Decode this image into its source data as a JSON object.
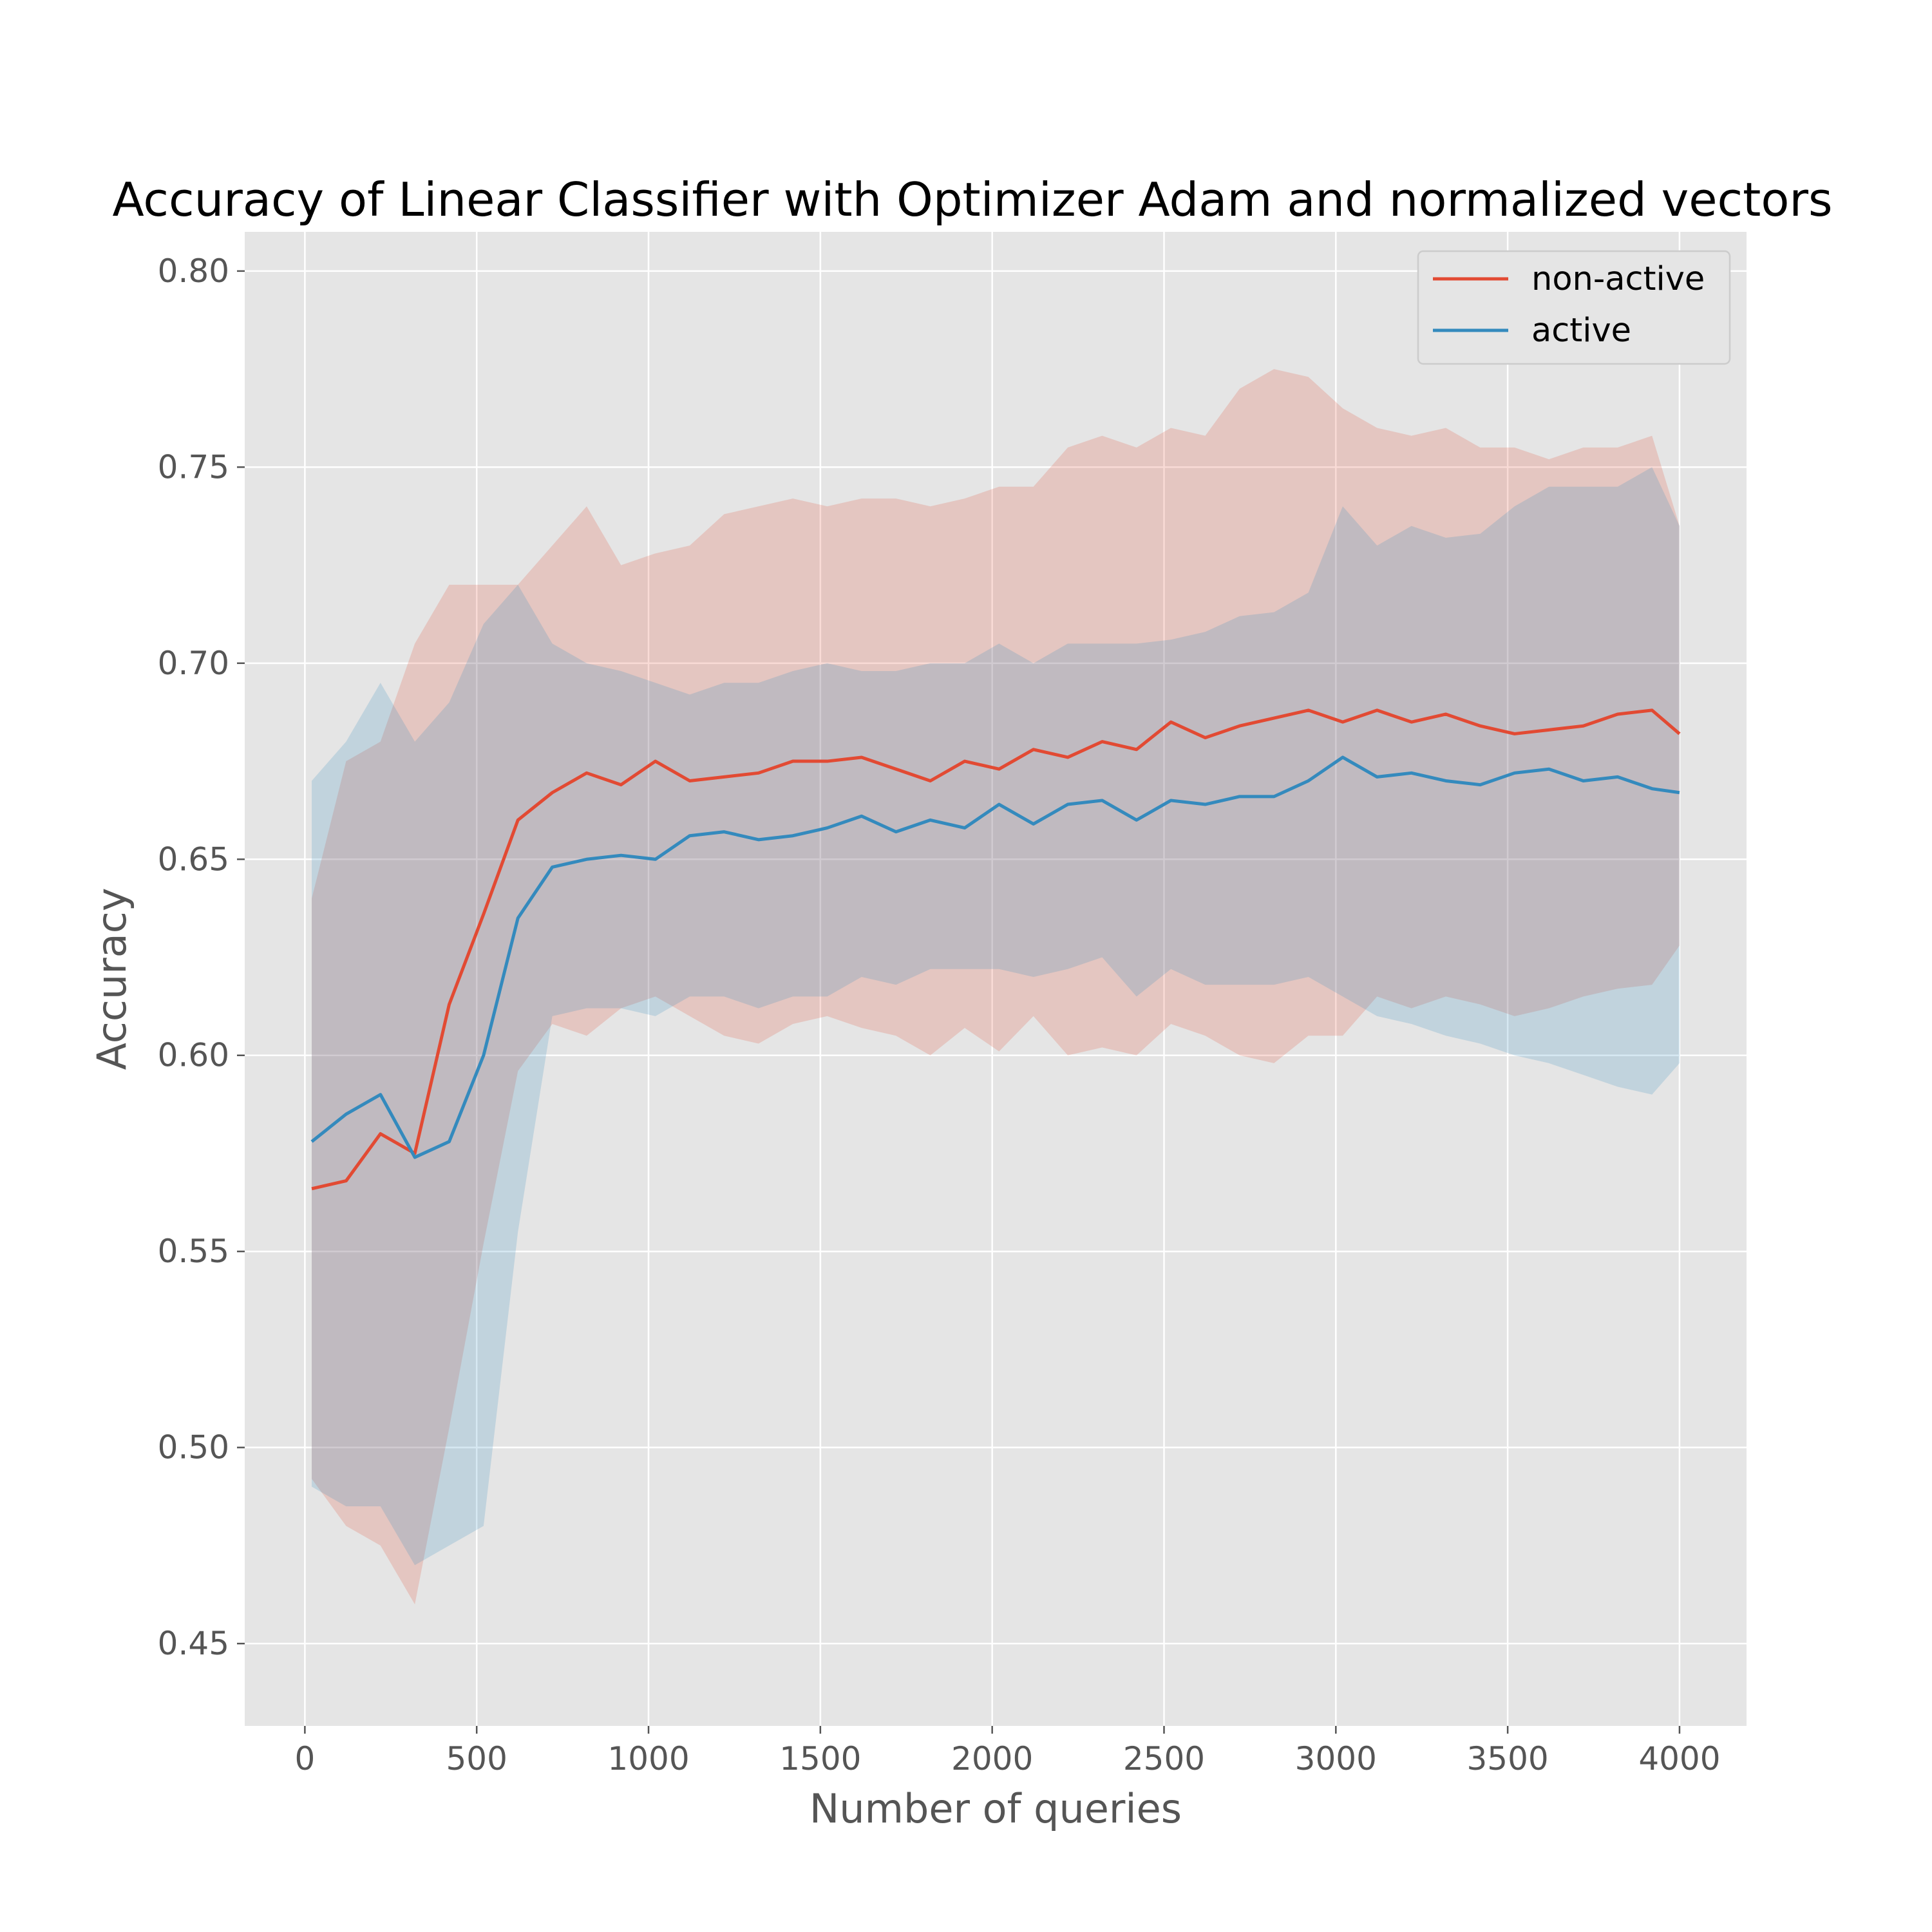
{
  "chart_data": {
    "type": "line",
    "title": "Accuracy of Linear Classifier with Optimizer Adam and normalized vectors",
    "xlabel": "Number of queries",
    "ylabel": "Accuracy",
    "xlim": [
      -175,
      4195
    ],
    "ylim": [
      0.429,
      0.81
    ],
    "xticks": [
      0,
      500,
      1000,
      1500,
      2000,
      2500,
      3000,
      3500,
      4000
    ],
    "yticks": [
      0.45,
      0.5,
      0.55,
      0.6,
      0.65,
      0.7,
      0.75,
      0.8
    ],
    "xtick_labels": [
      "0",
      "500",
      "1000",
      "1500",
      "2000",
      "2500",
      "3000",
      "3500",
      "4000"
    ],
    "ytick_labels": [
      "0.45",
      "0.50",
      "0.55",
      "0.60",
      "0.65",
      "0.70",
      "0.75",
      "0.80"
    ],
    "grid": true,
    "legend_position": "top-right",
    "x": [
      20,
      120,
      220,
      320,
      420,
      520,
      620,
      720,
      820,
      920,
      1020,
      1120,
      1220,
      1320,
      1420,
      1520,
      1620,
      1720,
      1820,
      1920,
      2020,
      2120,
      2220,
      2320,
      2420,
      2520,
      2620,
      2720,
      2820,
      2920,
      3020,
      3120,
      3220,
      3320,
      3420,
      3520,
      3620,
      3720,
      3820,
      3920,
      4000
    ],
    "series": [
      {
        "name": "non-active",
        "color": "#E24A33",
        "band_color": "#E24A33",
        "values": [
          0.566,
          0.568,
          0.58,
          0.575,
          0.613,
          0.636,
          0.66,
          0.667,
          0.672,
          0.669,
          0.675,
          0.67,
          0.671,
          0.672,
          0.675,
          0.675,
          0.676,
          0.673,
          0.67,
          0.675,
          0.673,
          0.678,
          0.676,
          0.68,
          0.678,
          0.685,
          0.681,
          0.684,
          0.686,
          0.688,
          0.685,
          0.688,
          0.685,
          0.687,
          0.684,
          0.682,
          0.683,
          0.684,
          0.687,
          0.688,
          0.682
        ],
        "upper": [
          0.64,
          0.675,
          0.68,
          0.705,
          0.72,
          0.72,
          0.72,
          0.73,
          0.74,
          0.725,
          0.728,
          0.73,
          0.738,
          0.74,
          0.742,
          0.74,
          0.742,
          0.742,
          0.74,
          0.742,
          0.745,
          0.745,
          0.755,
          0.758,
          0.755,
          0.76,
          0.758,
          0.77,
          0.775,
          0.773,
          0.765,
          0.76,
          0.758,
          0.76,
          0.755,
          0.755,
          0.752,
          0.755,
          0.755,
          0.758,
          0.735
        ],
        "lower": [
          0.492,
          0.48,
          0.475,
          0.46,
          0.505,
          0.552,
          0.596,
          0.608,
          0.605,
          0.612,
          0.615,
          0.61,
          0.605,
          0.603,
          0.608,
          0.61,
          0.607,
          0.605,
          0.6,
          0.607,
          0.601,
          0.61,
          0.6,
          0.602,
          0.6,
          0.608,
          0.605,
          0.6,
          0.598,
          0.605,
          0.605,
          0.615,
          0.612,
          0.615,
          0.613,
          0.61,
          0.612,
          0.615,
          0.617,
          0.618,
          0.628
        ]
      },
      {
        "name": "active",
        "color": "#348ABD",
        "band_color": "#348ABD",
        "values": [
          0.578,
          0.585,
          0.59,
          0.574,
          0.578,
          0.6,
          0.635,
          0.648,
          0.65,
          0.651,
          0.65,
          0.656,
          0.657,
          0.655,
          0.656,
          0.658,
          0.661,
          0.657,
          0.66,
          0.658,
          0.664,
          0.659,
          0.664,
          0.665,
          0.66,
          0.665,
          0.664,
          0.666,
          0.666,
          0.67,
          0.676,
          0.671,
          0.672,
          0.67,
          0.669,
          0.672,
          0.673,
          0.67,
          0.671,
          0.668,
          0.667
        ],
        "upper": [
          0.67,
          0.68,
          0.695,
          0.68,
          0.69,
          0.71,
          0.72,
          0.705,
          0.7,
          0.698,
          0.695,
          0.692,
          0.695,
          0.695,
          0.698,
          0.7,
          0.698,
          0.698,
          0.7,
          0.7,
          0.705,
          0.7,
          0.705,
          0.705,
          0.705,
          0.706,
          0.708,
          0.712,
          0.713,
          0.718,
          0.74,
          0.73,
          0.735,
          0.732,
          0.733,
          0.74,
          0.745,
          0.745,
          0.745,
          0.75,
          0.735
        ],
        "lower": [
          0.49,
          0.485,
          0.485,
          0.47,
          0.475,
          0.48,
          0.555,
          0.61,
          0.612,
          0.612,
          0.61,
          0.615,
          0.615,
          0.612,
          0.615,
          0.615,
          0.62,
          0.618,
          0.622,
          0.622,
          0.622,
          0.62,
          0.622,
          0.625,
          0.615,
          0.622,
          0.618,
          0.618,
          0.618,
          0.62,
          0.615,
          0.61,
          0.608,
          0.605,
          0.603,
          0.6,
          0.598,
          0.595,
          0.592,
          0.59,
          0.598
        ]
      }
    ]
  }
}
